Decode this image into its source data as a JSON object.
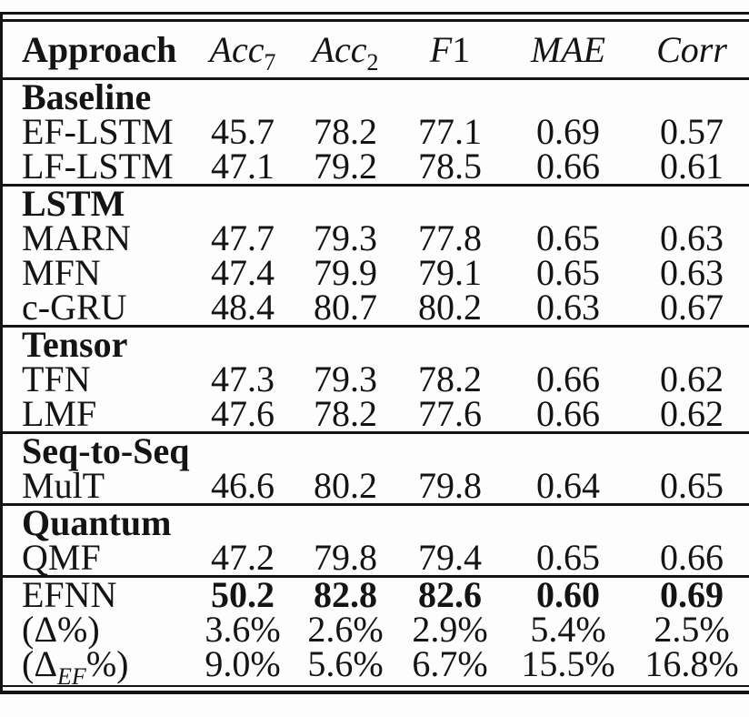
{
  "colors": {
    "ink": "#141414",
    "paper": "#fdfdfd"
  },
  "table": {
    "header": {
      "approach": "Approach",
      "metrics": [
        {
          "base": "Acc",
          "sub": "7"
        },
        {
          "base": "Acc",
          "sub": "2"
        },
        {
          "base": "F",
          "tail": "1"
        },
        {
          "base": "MAE"
        },
        {
          "base": "Corr"
        }
      ]
    },
    "sections": [
      {
        "header": "Baseline",
        "rows": [
          {
            "label": "EF-LSTM",
            "values": [
              "45.7",
              "78.2",
              "77.1",
              "0.69",
              "0.57"
            ]
          },
          {
            "label": "LF-LSTM",
            "values": [
              "47.1",
              "79.2",
              "78.5",
              "0.66",
              "0.61"
            ]
          }
        ]
      },
      {
        "header": "LSTM",
        "rows": [
          {
            "label": "MARN",
            "values": [
              "47.7",
              "79.3",
              "77.8",
              "0.65",
              "0.63"
            ]
          },
          {
            "label": "MFN",
            "values": [
              "47.4",
              "79.9",
              "79.1",
              "0.65",
              "0.63"
            ]
          },
          {
            "label": "c-GRU",
            "values": [
              "48.4",
              "80.7",
              "80.2",
              "0.63",
              "0.67"
            ]
          }
        ]
      },
      {
        "header": "Tensor",
        "rows": [
          {
            "label": "TFN",
            "values": [
              "47.3",
              "79.3",
              "78.2",
              "0.66",
              "0.62"
            ]
          },
          {
            "label": "LMF",
            "values": [
              "47.6",
              "78.2",
              "77.6",
              "0.66",
              "0.62"
            ]
          }
        ]
      },
      {
        "header": "Seq-to-Seq",
        "rows": [
          {
            "label": "MulT",
            "values": [
              "46.6",
              "80.2",
              "79.8",
              "0.64",
              "0.65"
            ]
          }
        ]
      },
      {
        "header": "Quantum",
        "rows": [
          {
            "label": "QMF",
            "values": [
              "47.2",
              "79.8",
              "79.4",
              "0.65",
              "0.66"
            ]
          }
        ]
      },
      {
        "header": null,
        "rows": [
          {
            "label": "EFNN",
            "values": [
              "50.2",
              "82.8",
              "82.6",
              "0.60",
              "0.69"
            ],
            "bold_values": true
          },
          {
            "label": "(Δ%)",
            "values": [
              "3.6%",
              "2.6%",
              "2.9%",
              "5.4%",
              "2.5%"
            ]
          },
          {
            "label_parts": {
              "pre": "(Δ",
              "sub": "EF",
              "post": "%)"
            },
            "values": [
              "9.0%",
              "5.6%",
              "6.7%",
              "15.5%",
              "16.8%"
            ]
          }
        ]
      }
    ]
  }
}
